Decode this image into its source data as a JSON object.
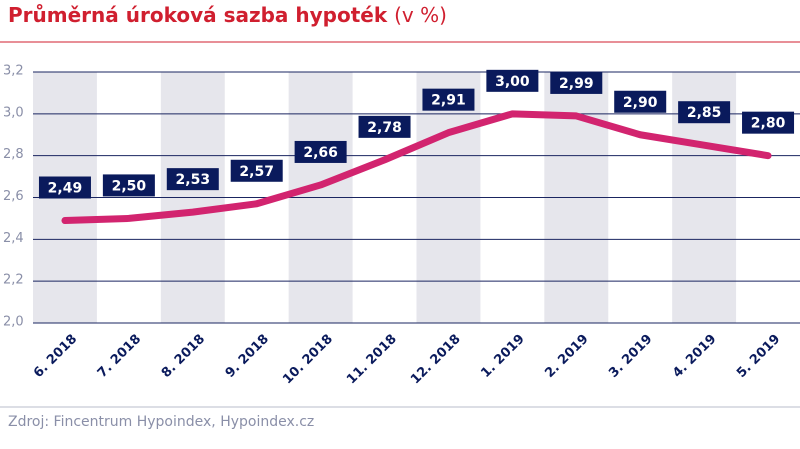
{
  "chart_data": {
    "type": "line",
    "title": "Průměrná úroková sazba hypoték",
    "title_suffix": "(v %)",
    "source": "Zdroj: Fincentrum Hypoindex, Hypoindex.cz",
    "categories": [
      "6. 2018",
      "7. 2018",
      "8. 2018",
      "9. 2018",
      "10. 2018",
      "11. 2018",
      "12. 2018",
      "1. 2019",
      "2. 2019",
      "3. 2019",
      "4. 2019",
      "5. 2019"
    ],
    "series": [
      {
        "color": "#d2246f",
        "values": [
          2.49,
          2.5,
          2.53,
          2.57,
          2.66,
          2.78,
          2.91,
          3.0,
          2.99,
          2.9,
          2.85,
          2.8
        ],
        "value_labels": [
          "2,49",
          "2,50",
          "2,53",
          "2,57",
          "2,66",
          "2,78",
          "2,91",
          "3,00",
          "2,99",
          "2,90",
          "2,85",
          "2,80"
        ]
      }
    ],
    "ylim": [
      2.0,
      3.2
    ],
    "yticks": [
      {
        "value": 2.0,
        "label": "2,0"
      },
      {
        "value": 2.2,
        "label": "2,2"
      },
      {
        "value": 2.4,
        "label": "2,4"
      },
      {
        "value": 2.6,
        "label": "2,6"
      },
      {
        "value": 2.8,
        "label": "2,8"
      },
      {
        "value": 3.0,
        "label": "3,0"
      },
      {
        "value": 3.2,
        "label": "3,2"
      }
    ],
    "grid": true
  }
}
